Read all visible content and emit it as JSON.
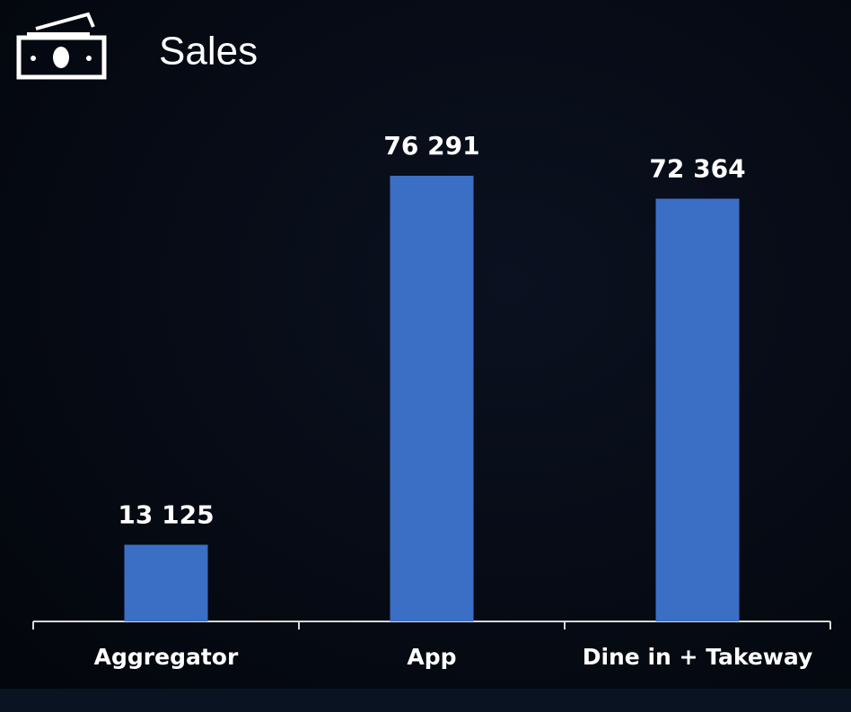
{
  "chart_data": {
    "type": "bar",
    "title": "Sales",
    "categories": [
      "Aggregator",
      "App",
      "Dine in + Takeway"
    ],
    "values": [
      13125,
      76291,
      72364
    ],
    "value_labels": [
      "13 125",
      "76 291",
      "72 364"
    ],
    "color": "#3b6fc6"
  }
}
